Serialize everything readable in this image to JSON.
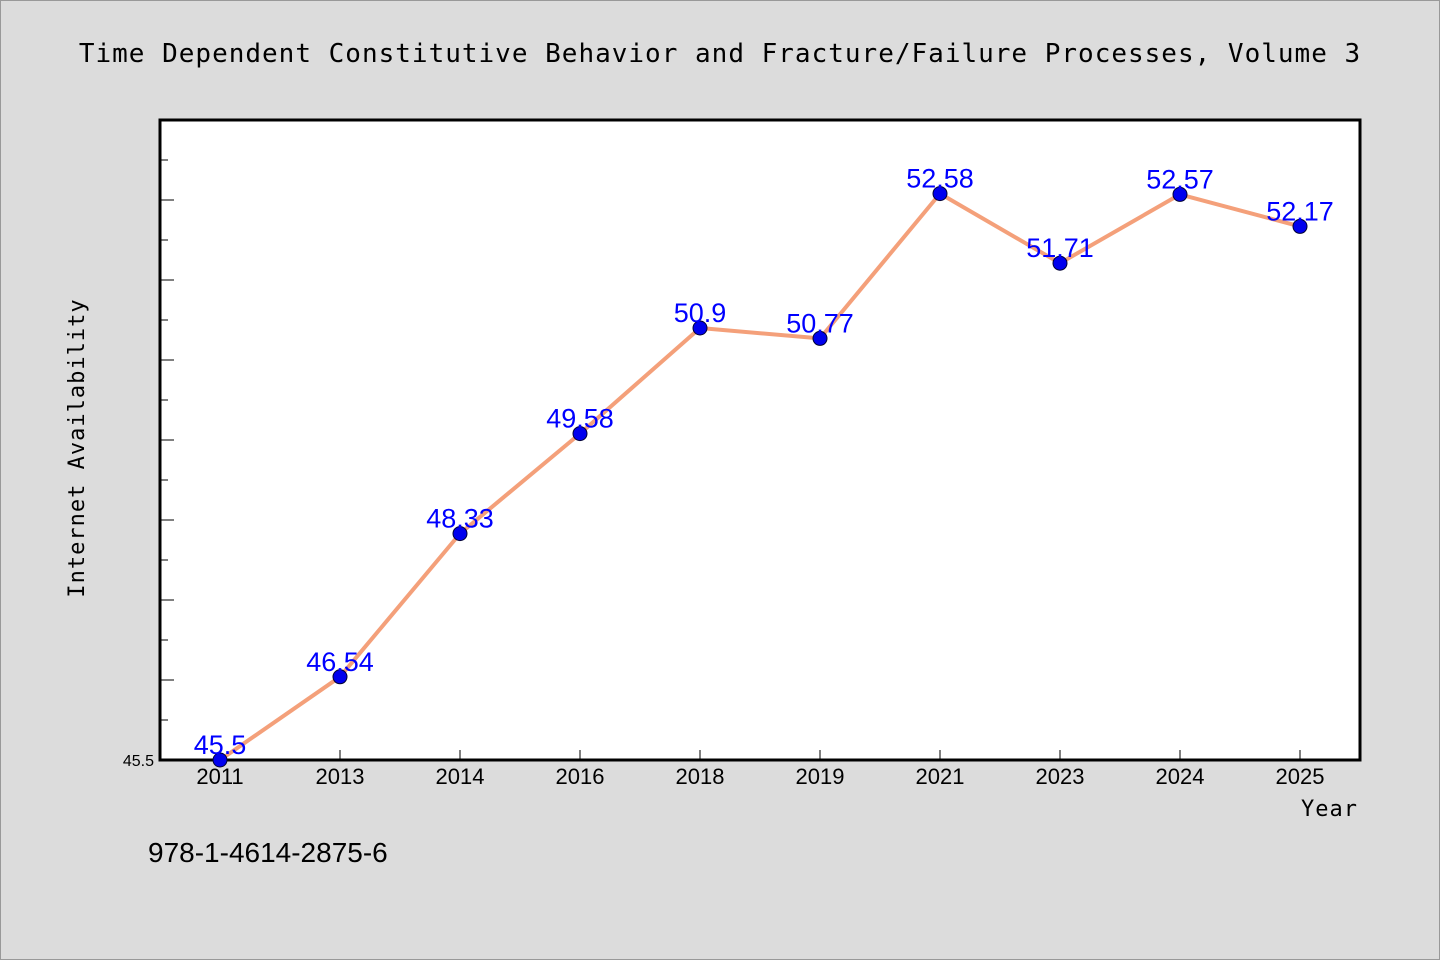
{
  "chart_data": {
    "type": "line",
    "title": "Time Dependent Constitutive Behavior and Fracture/Failure Processes, Volume 3",
    "xlabel": "Year",
    "ylabel": "Internet Availability",
    "categories": [
      "2011",
      "2013",
      "2014",
      "2016",
      "2018",
      "2019",
      "2021",
      "2023",
      "2024",
      "2025"
    ],
    "series": [
      {
        "values": [
          45.5,
          46.54,
          48.33,
          49.58,
          50.9,
          50.77,
          52.58,
          51.71,
          52.57,
          52.17
        ]
      }
    ],
    "data_labels": [
      "45.5",
      "46.54",
      "48.33",
      "49.58",
      "50.9",
      "50.77",
      "52.58",
      "51.71",
      "52.57",
      "52.17"
    ],
    "ytick_labels": [
      "45.5"
    ],
    "ylim": [
      45.5,
      53.5
    ],
    "grid": false,
    "annotation": "978-1-4614-2875-6",
    "colors": {
      "line": "#f4a07a",
      "marker": "#0000ee",
      "data_label": "#0000ff",
      "plot_bg": "#ffffff",
      "page_bg": "#dcdcdc"
    }
  }
}
